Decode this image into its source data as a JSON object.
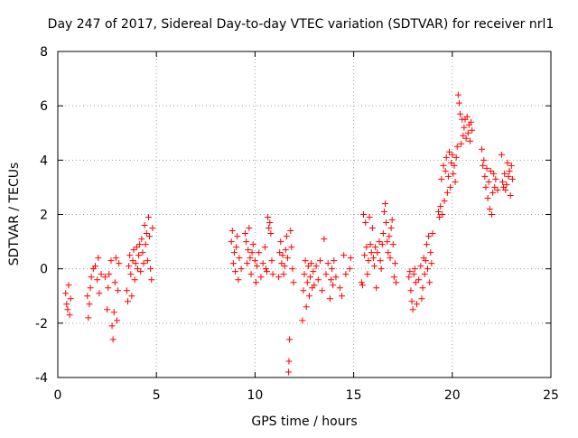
{
  "chart_data": {
    "type": "scatter",
    "title": "Day 247 of 2017, Sidereal Day-to-day VTEC variation (SDTVAR) for receiver nrl1",
    "xlabel": "GPS time / hours",
    "ylabel": "SDTVAR / TECUs",
    "xlim": [
      0,
      25
    ],
    "ylim": [
      -4,
      8
    ],
    "xticks": [
      0,
      5,
      10,
      15,
      20,
      25
    ],
    "yticks": [
      -4,
      -2,
      0,
      2,
      4,
      6,
      8
    ],
    "grid": true,
    "marker": "+",
    "color": "#ff0000",
    "segments": [
      [
        [
          0.4,
          -0.9
        ],
        [
          0.45,
          -1.3
        ],
        [
          0.5,
          -1.5
        ],
        [
          0.55,
          -0.6
        ],
        [
          0.6,
          -1.7
        ],
        [
          0.65,
          -1.1
        ]
      ],
      [
        [
          1.5,
          -1.0
        ],
        [
          1.55,
          -1.8
        ],
        [
          1.6,
          -1.3
        ],
        [
          1.65,
          -0.7
        ],
        [
          1.7,
          -0.3
        ],
        [
          1.8,
          0.0
        ],
        [
          1.9,
          0.1
        ],
        [
          2.0,
          -0.4
        ],
        [
          2.05,
          0.4
        ],
        [
          2.1,
          -0.9
        ],
        [
          2.2,
          -0.2
        ]
      ],
      [
        [
          2.4,
          -0.3
        ],
        [
          2.5,
          -1.5
        ],
        [
          2.55,
          -0.7
        ],
        [
          2.6,
          -0.2
        ],
        [
          2.7,
          0.3
        ],
        [
          2.75,
          -2.1
        ],
        [
          2.8,
          -2.6
        ],
        [
          2.85,
          -1.6
        ],
        [
          2.9,
          -0.5
        ],
        [
          2.95,
          0.4
        ],
        [
          3.0,
          -1.9
        ],
        [
          3.05,
          -0.8
        ],
        [
          3.1,
          0.2
        ]
      ],
      [
        [
          3.5,
          -0.8
        ],
        [
          3.55,
          -1.2
        ],
        [
          3.6,
          0.1
        ],
        [
          3.65,
          0.5
        ],
        [
          3.7,
          -0.2
        ],
        [
          3.75,
          -1.0
        ],
        [
          3.8,
          0.3
        ],
        [
          3.85,
          0.7
        ],
        [
          3.9,
          -0.4
        ],
        [
          3.95,
          0.2
        ],
        [
          4.0,
          0.8
        ],
        [
          4.05,
          0.0
        ],
        [
          4.1,
          0.5
        ],
        [
          4.15,
          0.9
        ],
        [
          4.2,
          -0.1
        ],
        [
          4.25,
          1.1
        ],
        [
          4.3,
          0.6
        ],
        [
          4.35,
          0.2
        ],
        [
          4.4,
          1.6
        ],
        [
          4.45,
          0.9
        ],
        [
          4.5,
          1.3
        ],
        [
          4.55,
          0.3
        ],
        [
          4.6,
          1.9
        ],
        [
          4.65,
          1.2
        ],
        [
          4.7,
          0.0
        ],
        [
          4.75,
          -0.4
        ],
        [
          4.8,
          1.5
        ]
      ],
      [
        [
          8.8,
          1.0
        ],
        [
          8.85,
          1.4
        ],
        [
          8.9,
          0.2
        ],
        [
          8.95,
          0.6
        ],
        [
          9.0,
          -0.1
        ],
        [
          9.05,
          0.8
        ],
        [
          9.1,
          1.2
        ],
        [
          9.15,
          -0.4
        ],
        [
          9.2,
          0.4
        ],
        [
          9.3,
          0.0
        ]
      ],
      [
        [
          9.5,
          1.3
        ],
        [
          9.55,
          1.0
        ],
        [
          9.6,
          0.2
        ],
        [
          9.65,
          0.7
        ],
        [
          9.7,
          1.5
        ],
        [
          9.75,
          0.4
        ],
        [
          9.8,
          -0.2
        ],
        [
          9.85,
          0.6
        ],
        [
          9.9,
          0.9
        ],
        [
          10.0,
          0.3
        ],
        [
          10.05,
          -0.5
        ],
        [
          10.1,
          0.1
        ],
        [
          10.2,
          0.6
        ],
        [
          10.3,
          -0.3
        ],
        [
          10.4,
          0.2
        ],
        [
          10.5,
          0.8
        ],
        [
          10.55,
          0.0
        ],
        [
          10.6,
          -0.1
        ],
        [
          10.65,
          1.9
        ],
        [
          10.7,
          1.5
        ],
        [
          10.75,
          1.7
        ],
        [
          10.8,
          1.3
        ],
        [
          10.85,
          0.3
        ],
        [
          10.9,
          -0.2
        ]
      ],
      [
        [
          11.2,
          -0.3
        ],
        [
          11.25,
          0.6
        ],
        [
          11.3,
          1.0
        ],
        [
          11.35,
          0.2
        ],
        [
          11.4,
          0.5
        ],
        [
          11.45,
          -0.2
        ],
        [
          11.5,
          0.1
        ],
        [
          11.55,
          0.7
        ],
        [
          11.6,
          1.2
        ],
        [
          11.65,
          0.4
        ],
        [
          11.7,
          -3.8
        ],
        [
          11.72,
          -3.4
        ],
        [
          11.75,
          -2.6
        ],
        [
          11.8,
          1.4
        ],
        [
          11.85,
          0.8
        ],
        [
          11.9,
          0.0
        ],
        [
          11.95,
          -0.5
        ]
      ],
      [
        [
          12.4,
          -1.9
        ],
        [
          12.45,
          -0.8
        ],
        [
          12.5,
          -0.2
        ],
        [
          12.55,
          0.3
        ],
        [
          12.6,
          -1.4
        ],
        [
          12.65,
          -0.5
        ],
        [
          12.7,
          0.1
        ],
        [
          12.75,
          -1.0
        ],
        [
          12.8,
          -0.3
        ],
        [
          12.85,
          0.2
        ],
        [
          12.9,
          -0.7
        ],
        [
          12.95,
          -0.1
        ],
        [
          13.0,
          -0.6
        ],
        [
          13.1,
          0.1
        ],
        [
          13.2,
          -0.4
        ],
        [
          13.3,
          0.3
        ],
        [
          13.4,
          -0.8
        ],
        [
          13.5,
          1.1
        ],
        [
          13.6,
          -0.2
        ],
        [
          13.7,
          0.2
        ],
        [
          13.8,
          -1.1
        ],
        [
          13.85,
          -0.4
        ],
        [
          13.9,
          0.0
        ],
        [
          13.95,
          -0.6
        ],
        [
          14.0,
          0.3
        ],
        [
          14.1,
          -0.3
        ],
        [
          14.3,
          -0.7
        ],
        [
          14.4,
          -1.0
        ],
        [
          14.5,
          0.5
        ],
        [
          14.6,
          -0.2
        ],
        [
          14.8,
          0.0
        ],
        [
          14.85,
          0.4
        ]
      ],
      [
        [
          15.4,
          -0.5
        ],
        [
          15.45,
          -0.6
        ],
        [
          15.5,
          2.0
        ],
        [
          15.55,
          0.5
        ],
        [
          15.6,
          1.7
        ],
        [
          15.65,
          0.8
        ],
        [
          15.7,
          -0.2
        ],
        [
          15.75,
          0.3
        ],
        [
          15.8,
          1.9
        ],
        [
          15.85,
          0.9
        ],
        [
          15.9,
          0.6
        ],
        [
          15.95,
          1.5
        ],
        [
          16.0,
          0.4
        ],
        [
          16.05,
          0.1
        ],
        [
          16.1,
          0.8
        ],
        [
          16.15,
          -0.7
        ],
        [
          16.2,
          0.6
        ],
        [
          16.3,
          1.0
        ],
        [
          16.35,
          0.3
        ],
        [
          16.4,
          0.0
        ],
        [
          16.45,
          0.9
        ],
        [
          16.5,
          1.3
        ],
        [
          16.55,
          2.1
        ],
        [
          16.6,
          2.4
        ],
        [
          16.65,
          1.7
        ],
        [
          16.7,
          1.0
        ],
        [
          16.75,
          0.6
        ],
        [
          16.8,
          1.2
        ],
        [
          16.85,
          0.4
        ],
        [
          16.9,
          1.5
        ],
        [
          16.95,
          1.8
        ],
        [
          17.0,
          0.9
        ],
        [
          17.05,
          -0.3
        ],
        [
          17.1,
          0.2
        ],
        [
          17.15,
          -0.5
        ]
      ],
      [
        [
          17.8,
          -0.3
        ],
        [
          17.85,
          -0.1
        ],
        [
          17.9,
          -0.8
        ],
        [
          17.95,
          -1.2
        ],
        [
          18.0,
          -1.5
        ],
        [
          18.05,
          -0.2
        ],
        [
          18.1,
          0.0
        ],
        [
          18.15,
          -0.5
        ],
        [
          18.2,
          -1.3
        ],
        [
          18.3,
          -0.4
        ],
        [
          18.4,
          0.1
        ],
        [
          18.45,
          -1.1
        ],
        [
          18.5,
          -0.7
        ],
        [
          18.55,
          0.4
        ],
        [
          18.6,
          -0.2
        ],
        [
          18.65,
          0.3
        ],
        [
          18.7,
          0.9
        ],
        [
          18.75,
          0.0
        ],
        [
          18.8,
          1.2
        ],
        [
          18.85,
          -0.5
        ],
        [
          18.9,
          0.6
        ],
        [
          18.95,
          0.2
        ],
        [
          19.0,
          1.3
        ]
      ],
      [
        [
          19.3,
          2.1
        ],
        [
          19.35,
          1.9
        ],
        [
          19.4,
          2.3
        ],
        [
          19.45,
          3.3
        ],
        [
          19.5,
          2.0
        ],
        [
          19.55,
          3.8
        ],
        [
          19.6,
          2.5
        ],
        [
          19.65,
          3.6
        ],
        [
          19.7,
          4.1
        ],
        [
          19.75,
          2.8
        ],
        [
          19.8,
          3.4
        ],
        [
          19.85,
          4.3
        ],
        [
          19.9,
          3.0
        ],
        [
          19.95,
          3.9
        ],
        [
          20.0,
          4.2
        ],
        [
          20.05,
          3.5
        ],
        [
          20.1,
          3.8
        ],
        [
          20.15,
          3.2
        ],
        [
          20.2,
          4.1
        ],
        [
          20.25,
          4.5
        ],
        [
          20.3,
          6.4
        ],
        [
          20.35,
          6.1
        ],
        [
          20.4,
          5.7
        ],
        [
          20.45,
          4.6
        ],
        [
          20.5,
          5.5
        ],
        [
          20.55,
          4.9
        ],
        [
          20.6,
          5.2
        ],
        [
          20.65,
          5.5
        ],
        [
          20.7,
          4.8
        ],
        [
          20.75,
          5.6
        ],
        [
          20.8,
          5.0
        ],
        [
          20.85,
          5.3
        ],
        [
          20.9,
          4.7
        ],
        [
          20.95,
          5.4
        ],
        [
          21.0,
          5.1
        ]
      ],
      [
        [
          21.5,
          4.4
        ],
        [
          21.55,
          3.8
        ],
        [
          21.6,
          4.0
        ],
        [
          21.65,
          3.4
        ],
        [
          21.7,
          3.0
        ],
        [
          21.75,
          3.7
        ],
        [
          21.8,
          2.6
        ],
        [
          21.85,
          3.2
        ],
        [
          21.9,
          2.2
        ],
        [
          21.95,
          3.6
        ],
        [
          22.0,
          2.0
        ],
        [
          22.05,
          2.8
        ],
        [
          22.1,
          3.5
        ],
        [
          22.15,
          3.0
        ],
        [
          22.2,
          3.3
        ],
        [
          22.3,
          2.9
        ]
      ],
      [
        [
          22.5,
          4.2
        ],
        [
          22.55,
          3.2
        ],
        [
          22.6,
          3.0
        ],
        [
          22.65,
          3.5
        ],
        [
          22.7,
          2.9
        ],
        [
          22.75,
          3.1
        ],
        [
          22.8,
          3.9
        ],
        [
          22.85,
          3.4
        ],
        [
          22.9,
          3.6
        ],
        [
          22.95,
          2.7
        ],
        [
          23.0,
          3.8
        ],
        [
          23.05,
          3.3
        ]
      ]
    ]
  }
}
